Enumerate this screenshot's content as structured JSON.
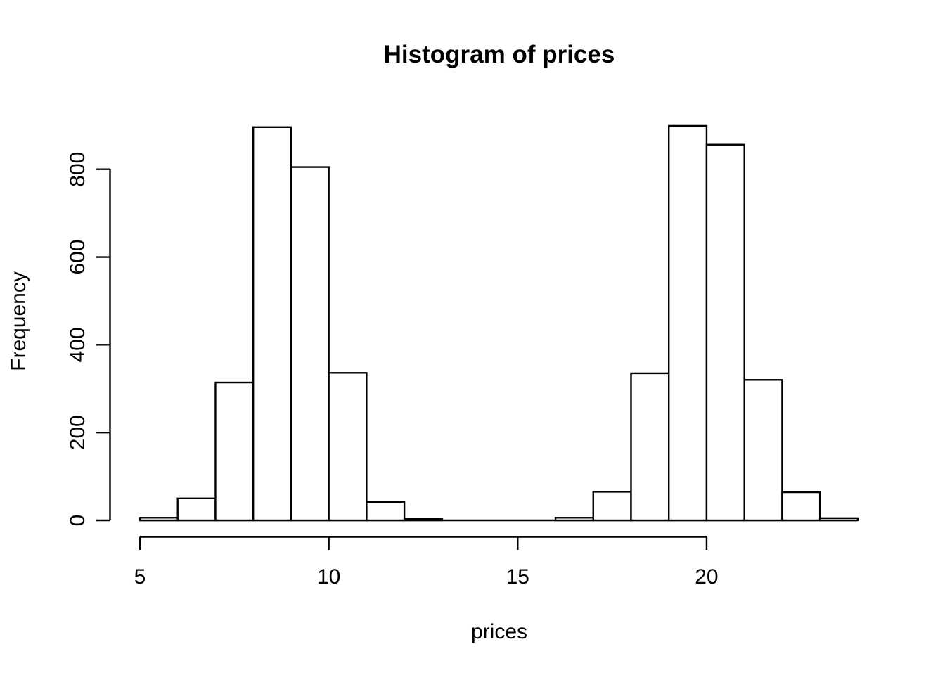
{
  "chart_data": {
    "type": "bar",
    "chart_kind": "histogram",
    "title": "Histogram of prices",
    "xlabel": "prices",
    "ylabel": "Frequency",
    "bin_edges": [
      5,
      6,
      7,
      8,
      9,
      10,
      11,
      12,
      13,
      14,
      15,
      16,
      17,
      18,
      19,
      20,
      21,
      22,
      23,
      24
    ],
    "counts": [
      6,
      50,
      314,
      896,
      805,
      336,
      42,
      3,
      0,
      0,
      0,
      6,
      65,
      335,
      899,
      856,
      320,
      64,
      5
    ],
    "x_ticks": [
      5,
      10,
      15,
      20
    ],
    "y_ticks": [
      0,
      200,
      400,
      600,
      800
    ],
    "xlim": [
      5,
      24
    ],
    "ylim": [
      0,
      800
    ],
    "grid": false,
    "legend": "none",
    "bar_fill": "#ffffff",
    "line_color": "#000000",
    "background": "#ffffff"
  }
}
